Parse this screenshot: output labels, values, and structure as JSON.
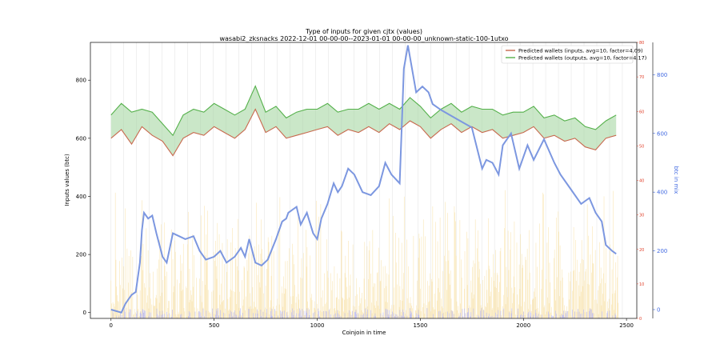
{
  "chart_data": {
    "type": "line",
    "title": "Type of inputs for given cjtx (values)",
    "subtitle": "wasabi2_zksnacks 2022-12-01 00-00-00--2023-01-01 00-00-00_unknown-static-100-1utxo",
    "xlabel": "Coinjoin in time",
    "ylabel": "Inputs values (btc)",
    "ylabel_right": "btc in mix",
    "xlim": [
      -100,
      2550
    ],
    "ylim": [
      -20,
      930
    ],
    "ylim_inner_right": [
      0,
      80
    ],
    "ylim_outer_right": [
      -30,
      910
    ],
    "x_ticks": [
      0,
      500,
      1000,
      1500,
      2000,
      2500
    ],
    "y_ticks": [
      0,
      200,
      400,
      600,
      800
    ],
    "inner_right_ticks": [
      0,
      10,
      20,
      30,
      40,
      50,
      60,
      70,
      80
    ],
    "outer_right_ticks": [
      0,
      200,
      400,
      600,
      800
    ],
    "legend": {
      "placement": "top-right",
      "entries": [
        "Predicted wallets (inputs, avg=10, factor=4.09)",
        "Predicted wallets (outputs, avg=10, factor=4.17)"
      ]
    },
    "grid": "vertical lines only",
    "colors": {
      "inputs_line": "#c8694e",
      "outputs_line": "#54b04a",
      "fill_between": "#9fd39a",
      "btc_in_mix": "#7c97e0",
      "volume_bars": "#f7dd9c",
      "small_bars": "#b9b9f2"
    },
    "series": [
      {
        "name": "Predicted wallets (inputs, avg=10, factor=4.09)",
        "x": [
          0,
          50,
          100,
          150,
          200,
          250,
          300,
          350,
          400,
          450,
          500,
          550,
          600,
          650,
          700,
          750,
          800,
          850,
          900,
          950,
          1000,
          1050,
          1100,
          1150,
          1200,
          1250,
          1300,
          1350,
          1400,
          1450,
          1500,
          1550,
          1600,
          1650,
          1700,
          1750,
          1800,
          1850,
          1900,
          1950,
          2000,
          2050,
          2100,
          2150,
          2200,
          2250,
          2300,
          2350,
          2400,
          2450
        ],
        "values": [
          600,
          630,
          580,
          640,
          610,
          590,
          540,
          600,
          620,
          610,
          640,
          620,
          600,
          630,
          700,
          620,
          640,
          600,
          610,
          620,
          630,
          640,
          610,
          630,
          620,
          640,
          620,
          650,
          630,
          660,
          640,
          600,
          630,
          650,
          620,
          640,
          620,
          630,
          600,
          610,
          620,
          640,
          600,
          610,
          590,
          600,
          570,
          560,
          600,
          610
        ]
      },
      {
        "name": "Predicted wallets (outputs, avg=10, factor=4.17)",
        "x": [
          0,
          50,
          100,
          150,
          200,
          250,
          300,
          350,
          400,
          450,
          500,
          550,
          600,
          650,
          700,
          750,
          800,
          850,
          900,
          950,
          1000,
          1050,
          1100,
          1150,
          1200,
          1250,
          1300,
          1350,
          1400,
          1450,
          1500,
          1550,
          1600,
          1650,
          1700,
          1750,
          1800,
          1850,
          1900,
          1950,
          2000,
          2050,
          2100,
          2150,
          2200,
          2250,
          2300,
          2350,
          2400,
          2450
        ],
        "values": [
          680,
          720,
          690,
          700,
          690,
          650,
          610,
          680,
          700,
          690,
          720,
          700,
          680,
          700,
          780,
          690,
          710,
          670,
          690,
          700,
          700,
          720,
          690,
          700,
          700,
          720,
          700,
          720,
          700,
          740,
          710,
          670,
          700,
          720,
          690,
          710,
          700,
          700,
          680,
          690,
          690,
          710,
          670,
          680,
          660,
          670,
          640,
          630,
          660,
          680
        ]
      },
      {
        "name": "btc in mix",
        "x": [
          0,
          50,
          70,
          100,
          120,
          140,
          150,
          160,
          180,
          200,
          220,
          250,
          270,
          300,
          330,
          360,
          400,
          430,
          460,
          500,
          530,
          560,
          600,
          630,
          650,
          670,
          700,
          730,
          760,
          800,
          830,
          850,
          860,
          900,
          920,
          950,
          980,
          1000,
          1020,
          1050,
          1080,
          1100,
          1120,
          1150,
          1180,
          1220,
          1260,
          1300,
          1330,
          1360,
          1400,
          1420,
          1440,
          1480,
          1510,
          1540,
          1560,
          1600,
          1650,
          1700,
          1750,
          1800,
          1820,
          1850,
          1880,
          1900,
          1940,
          1980,
          2020,
          2050,
          2100,
          2150,
          2180,
          2230,
          2280,
          2320,
          2350,
          2380,
          2400,
          2430,
          2450
        ],
        "values": [
          0,
          -10,
          20,
          50,
          60,
          160,
          270,
          330,
          310,
          320,
          260,
          180,
          160,
          260,
          250,
          240,
          250,
          200,
          170,
          180,
          200,
          160,
          180,
          210,
          180,
          240,
          160,
          150,
          170,
          240,
          300,
          310,
          330,
          350,
          290,
          330,
          260,
          240,
          310,
          360,
          430,
          400,
          420,
          480,
          460,
          400,
          390,
          420,
          500,
          460,
          430,
          820,
          900,
          740,
          760,
          740,
          700,
          680,
          660,
          640,
          620,
          480,
          510,
          500,
          460,
          560,
          600,
          480,
          560,
          510,
          580,
          500,
          460,
          410,
          360,
          380,
          330,
          300,
          220,
          200,
          190
        ]
      }
    ],
    "volume_bars_description": "many thin yellow bars up to roughly 30 (inner right axis) across all coinjoins"
  }
}
